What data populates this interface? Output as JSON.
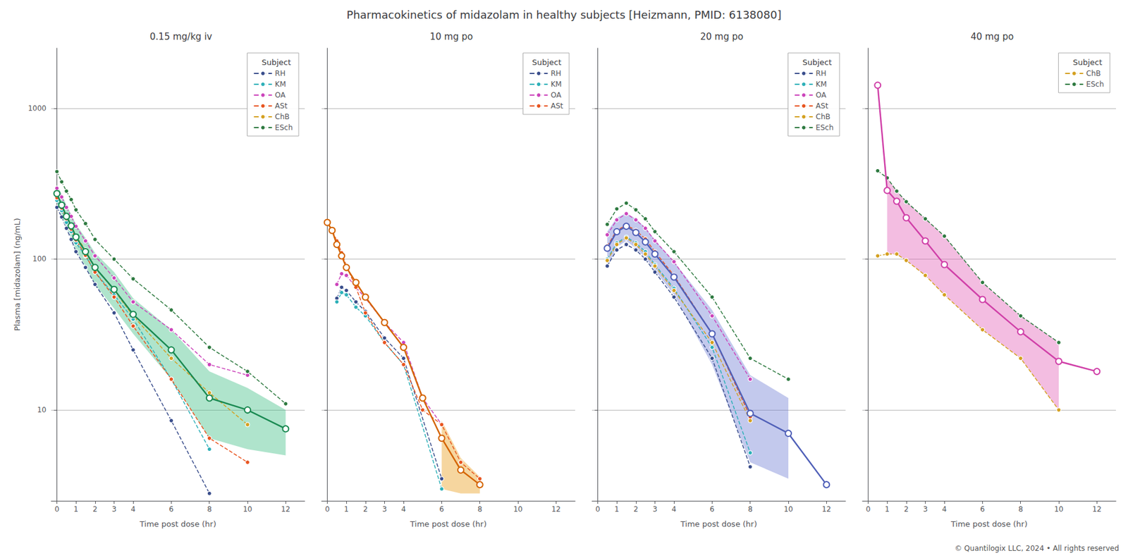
{
  "title": "Pharmacokinetics of midazolam in healthy subjects [Heizmann, PMID: 6138080]",
  "annotations": [
    "© Quantilogix LLC, 2024 • All rights reserved"
  ],
  "chart_data": [
    {
      "type": "line",
      "title": "0.15 mg/kg iv",
      "x_label": "Time post dose (hr)",
      "y_label": "Plasma [midazolam] (ng/mL)",
      "log": "y",
      "grid": true,
      "legend": "upper right",
      "legend_title": "Subject",
      "xlim": [
        -0.3,
        13
      ],
      "xticks": [
        0,
        1,
        2,
        3,
        4,
        6,
        8,
        10,
        12
      ],
      "ylim": [
        2.5,
        2500
      ],
      "yticks": [
        10,
        100,
        1000
      ],
      "series": [
        {
          "name": "RH",
          "color": "#3a4e8c",
          "marker": "circle",
          "line_style": "dashed",
          "x": [
            0,
            0.25,
            0.5,
            0.75,
            1,
            1.5,
            2,
            3,
            4,
            6,
            8
          ],
          "values": [
            220,
            190,
            160,
            135,
            112,
            88,
            68,
            44,
            25,
            8.5,
            2.8
          ]
        },
        {
          "name": "KM",
          "color": "#2db0b8",
          "marker": "circle",
          "line_style": "dashed",
          "x": [
            0,
            0.25,
            0.5,
            0.75,
            1,
            1.5,
            2,
            3,
            4,
            6,
            8
          ],
          "values": [
            245,
            210,
            175,
            152,
            128,
            105,
            82,
            58,
            40,
            16,
            5.5
          ]
        },
        {
          "name": "OA",
          "color": "#cc44bb",
          "marker": "circle",
          "line_style": "dashed",
          "x": [
            0,
            0.25,
            0.5,
            0.75,
            1,
            1.5,
            2,
            3,
            4,
            6,
            8,
            10,
            12
          ],
          "values": [
            295,
            258,
            220,
            192,
            165,
            132,
            105,
            75,
            52,
            34,
            20,
            17,
            null
          ]
        },
        {
          "name": "ASt",
          "color": "#e85520",
          "marker": "circle",
          "line_style": "dashed",
          "x": [
            0,
            0.25,
            0.5,
            0.75,
            1,
            1.5,
            2,
            3,
            4,
            6,
            8,
            10
          ],
          "values": [
            255,
            218,
            185,
            158,
            134,
            106,
            82,
            56,
            36,
            16,
            6.5,
            4.5
          ]
        },
        {
          "name": "ChB",
          "color": "#d4a020",
          "marker": "circle",
          "line_style": "dashed",
          "x": [
            0,
            0.25,
            0.5,
            0.75,
            1,
            1.5,
            2,
            3,
            4,
            6,
            8,
            10
          ],
          "values": [
            268,
            228,
            194,
            168,
            142,
            115,
            88,
            62,
            42,
            22,
            13,
            8.0
          ]
        },
        {
          "name": "ESch",
          "color": "#2e7a40",
          "marker": "circle",
          "line_style": "dashed",
          "x": [
            0,
            0.25,
            0.5,
            0.75,
            1,
            1.5,
            2,
            3,
            4,
            6,
            8,
            10,
            12
          ],
          "values": [
            380,
            325,
            282,
            248,
            212,
            172,
            135,
            100,
            74,
            46,
            26,
            18,
            11
          ]
        },
        {
          "type": "band",
          "color": "#2ab87860",
          "x": [
            0,
            0.25,
            0.5,
            0.75,
            1,
            1.5,
            2,
            3,
            4,
            6,
            8,
            10,
            12
          ],
          "lower": [
            238,
            195,
            162,
            138,
            115,
            90,
            68,
            47,
            32,
            16,
            6.5,
            5.5,
            5.0
          ],
          "upper": [
            312,
            268,
            228,
            198,
            170,
            138,
            110,
            82,
            55,
            34,
            18,
            14,
            10
          ]
        },
        {
          "color": "#1a8a52",
          "marker": "open_circle",
          "line_style": "solid",
          "x": [
            0,
            0.25,
            0.5,
            0.75,
            1,
            1.5,
            2,
            3,
            4,
            6,
            8,
            10,
            12
          ],
          "values": [
            272,
            228,
            192,
            166,
            140,
            112,
            88,
            63,
            43,
            25,
            12,
            10,
            7.5
          ]
        }
      ]
    },
    {
      "type": "line",
      "title": "10 mg po",
      "x_label": "Time post dose (hr)",
      "log": "y",
      "grid": true,
      "legend": "upper right",
      "legend_title": "Subject",
      "tick_labels": "x",
      "xlim": [
        -0.3,
        13
      ],
      "xticks": [
        0,
        1,
        2,
        3,
        4,
        6,
        8,
        10,
        12
      ],
      "ylim": [
        2.5,
        2500
      ],
      "yticks": [
        10,
        100,
        1000
      ],
      "series": [
        {
          "name": "RH",
          "color": "#3a4e8c",
          "marker": "circle",
          "line_style": "dashed",
          "x": [
            0.5,
            0.75,
            1,
            1.5,
            2,
            3,
            4,
            6
          ],
          "values": [
            55,
            65,
            62,
            52,
            45,
            30,
            22,
            3.5
          ]
        },
        {
          "name": "KM",
          "color": "#2db0b8",
          "marker": "circle",
          "line_style": "dashed",
          "x": [
            0.5,
            0.75,
            1,
            1.5,
            2,
            3,
            4,
            6
          ],
          "values": [
            52,
            60,
            58,
            48,
            42,
            28,
            20,
            3.0
          ]
        },
        {
          "name": "OA",
          "color": "#cc44bb",
          "marker": "circle",
          "line_style": "dashed",
          "x": [
            0.5,
            0.75,
            1,
            1.5,
            2,
            3,
            4,
            5,
            6
          ],
          "values": [
            68,
            80,
            78,
            65,
            55,
            38,
            28,
            12,
            8.0
          ]
        },
        {
          "name": "ASt",
          "color": "#e85520",
          "marker": "circle",
          "line_style": "dashed",
          "x": [
            0,
            0.25,
            0.5,
            0.75,
            1,
            1.5,
            2,
            3,
            4,
            5,
            6,
            7,
            8
          ],
          "values": [
            175,
            155,
            132,
            110,
            90,
            65,
            44,
            28,
            20,
            10,
            8.0,
            4.5,
            3.5
          ]
        },
        {
          "type": "band",
          "color": "#e8930060",
          "x": [
            0,
            0.25,
            0.5,
            0.75,
            1,
            1.5,
            2,
            3,
            4,
            5,
            6,
            7,
            8
          ],
          "lower": [
            null,
            null,
            null,
            null,
            null,
            null,
            null,
            null,
            null,
            null,
            3.0,
            2.8,
            2.8
          ],
          "upper": [
            null,
            null,
            null,
            null,
            null,
            null,
            null,
            null,
            null,
            null,
            8.5,
            4.8,
            3.6
          ]
        },
        {
          "color": "#d46400",
          "marker": "open_circle",
          "line_style": "solid",
          "x": [
            0,
            0.25,
            0.5,
            0.75,
            1,
            1.5,
            2,
            3,
            4,
            5,
            6,
            7,
            8
          ],
          "values": [
            175,
            155,
            125,
            105,
            88,
            70,
            56,
            38,
            26,
            12,
            6.5,
            4.0,
            3.2
          ]
        }
      ]
    },
    {
      "type": "line",
      "title": "20 mg po",
      "x_label": "Time post dose (hr)",
      "log": "y",
      "grid": true,
      "legend": "upper right",
      "legend_title": "Subject",
      "tick_labels": "x",
      "xlim": [
        -0.3,
        13
      ],
      "xticks": [
        0,
        1,
        2,
        3,
        4,
        6,
        8,
        10,
        12
      ],
      "ylim": [
        2.5,
        2500
      ],
      "yticks": [
        10,
        100,
        1000
      ],
      "series": [
        {
          "name": "RH",
          "color": "#3a4e8c",
          "marker": "circle",
          "line_style": "dashed",
          "x": [
            0.5,
            1,
            1.5,
            2,
            2.5,
            3,
            4,
            6,
            8
          ],
          "values": [
            90,
            115,
            125,
            115,
            100,
            82,
            56,
            22,
            4.2
          ]
        },
        {
          "name": "KM",
          "color": "#2db0b8",
          "marker": "circle",
          "line_style": "dashed",
          "x": [
            0.5,
            1,
            1.5,
            2,
            2.5,
            3,
            4,
            6,
            8
          ],
          "values": [
            100,
            128,
            140,
            128,
            112,
            92,
            64,
            26,
            5.2
          ]
        },
        {
          "name": "OA",
          "color": "#cc44bb",
          "marker": "circle",
          "line_style": "dashed",
          "x": [
            0.5,
            1,
            1.5,
            2,
            2.5,
            3,
            4,
            6,
            8,
            10,
            12
          ],
          "values": [
            145,
            182,
            200,
            182,
            160,
            132,
            96,
            42,
            16,
            null,
            null
          ]
        },
        {
          "name": "ASt",
          "color": "#e85520",
          "marker": "circle",
          "line_style": "dashed",
          "x": [
            0.5,
            1,
            1.5,
            2,
            2.5,
            3,
            4,
            6,
            8
          ],
          "values": [
            122,
            155,
            168,
            155,
            136,
            112,
            78,
            32,
            9.0
          ]
        },
        {
          "name": "ChB",
          "color": "#d4a020",
          "marker": "circle",
          "line_style": "dashed",
          "x": [
            0.5,
            1,
            1.5,
            2,
            2.5,
            3,
            4,
            6,
            8,
            10
          ],
          "values": [
            98,
            125,
            138,
            125,
            108,
            90,
            62,
            28,
            8.5,
            null
          ]
        },
        {
          "name": "ESch",
          "color": "#2e7a40",
          "marker": "circle",
          "line_style": "dashed",
          "x": [
            0.5,
            1,
            1.5,
            2,
            2.5,
            3,
            4,
            6,
            8,
            10,
            12
          ],
          "values": [
            170,
            215,
            235,
            212,
            185,
            152,
            112,
            56,
            22,
            16,
            null
          ]
        },
        {
          "type": "band",
          "color": "#6070d060",
          "x": [
            0.5,
            1,
            1.5,
            2,
            2.5,
            3,
            4,
            6,
            8,
            10,
            12
          ],
          "lower": [
            88,
            120,
            132,
            118,
            102,
            84,
            58,
            20,
            4.5,
            3.5,
            2.5
          ],
          "upper": [
            152,
            188,
            202,
            185,
            162,
            134,
            96,
            46,
            17,
            12,
            null
          ]
        },
        {
          "color": "#5060b8",
          "marker": "open_circle",
          "line_style": "solid",
          "x": [
            0.5,
            1,
            1.5,
            2,
            2.5,
            3,
            4,
            6,
            8,
            10,
            12
          ],
          "values": [
            118,
            152,
            165,
            150,
            130,
            108,
            76,
            32,
            9.5,
            7.0,
            3.2
          ]
        }
      ]
    },
    {
      "type": "line",
      "title": "40 mg po",
      "x_label": "Time post dose (hr)",
      "log": "y",
      "grid": true,
      "legend": "upper right",
      "legend_title": "Subject",
      "tick_labels": "x",
      "xlim": [
        -0.3,
        13
      ],
      "xticks": [
        0,
        1,
        2,
        3,
        4,
        6,
        8,
        10,
        12
      ],
      "ylim": [
        2.5,
        2500
      ],
      "yticks": [
        10,
        100,
        1000
      ],
      "series": [
        {
          "name": "ChB",
          "color": "#d4a020",
          "marker": "circle",
          "line_style": "dashed",
          "x": [
            0.5,
            1,
            1.5,
            2,
            3,
            4,
            6,
            8,
            10,
            12
          ],
          "values": [
            105,
            108,
            108,
            98,
            78,
            58,
            34,
            22,
            10,
            null
          ]
        },
        {
          "name": "ESch",
          "color": "#2e7a40",
          "marker": "circle",
          "line_style": "dashed",
          "x": [
            0.5,
            1,
            1.5,
            2,
            3,
            4,
            6,
            8,
            10,
            12
          ],
          "values": [
            385,
            345,
            282,
            240,
            185,
            142,
            70,
            42,
            28,
            null
          ]
        },
        {
          "type": "band",
          "color": "#e050b060",
          "x": [
            0.5,
            1,
            1.5,
            2,
            3,
            4,
            6,
            8,
            10,
            12
          ],
          "lower": [
            null,
            108,
            108,
            98,
            78,
            58,
            34,
            22,
            10,
            null
          ],
          "upper": [
            null,
            345,
            282,
            240,
            185,
            142,
            70,
            42,
            28,
            null
          ]
        },
        {
          "color": "#d040a8",
          "marker": "open_circle",
          "line_style": "solid",
          "x": [
            0.5,
            1,
            1.5,
            2,
            3,
            4,
            6,
            8,
            10,
            12
          ],
          "values": [
            1420,
            285,
            242,
            188,
            132,
            92,
            54,
            33,
            21,
            18
          ]
        }
      ]
    }
  ]
}
